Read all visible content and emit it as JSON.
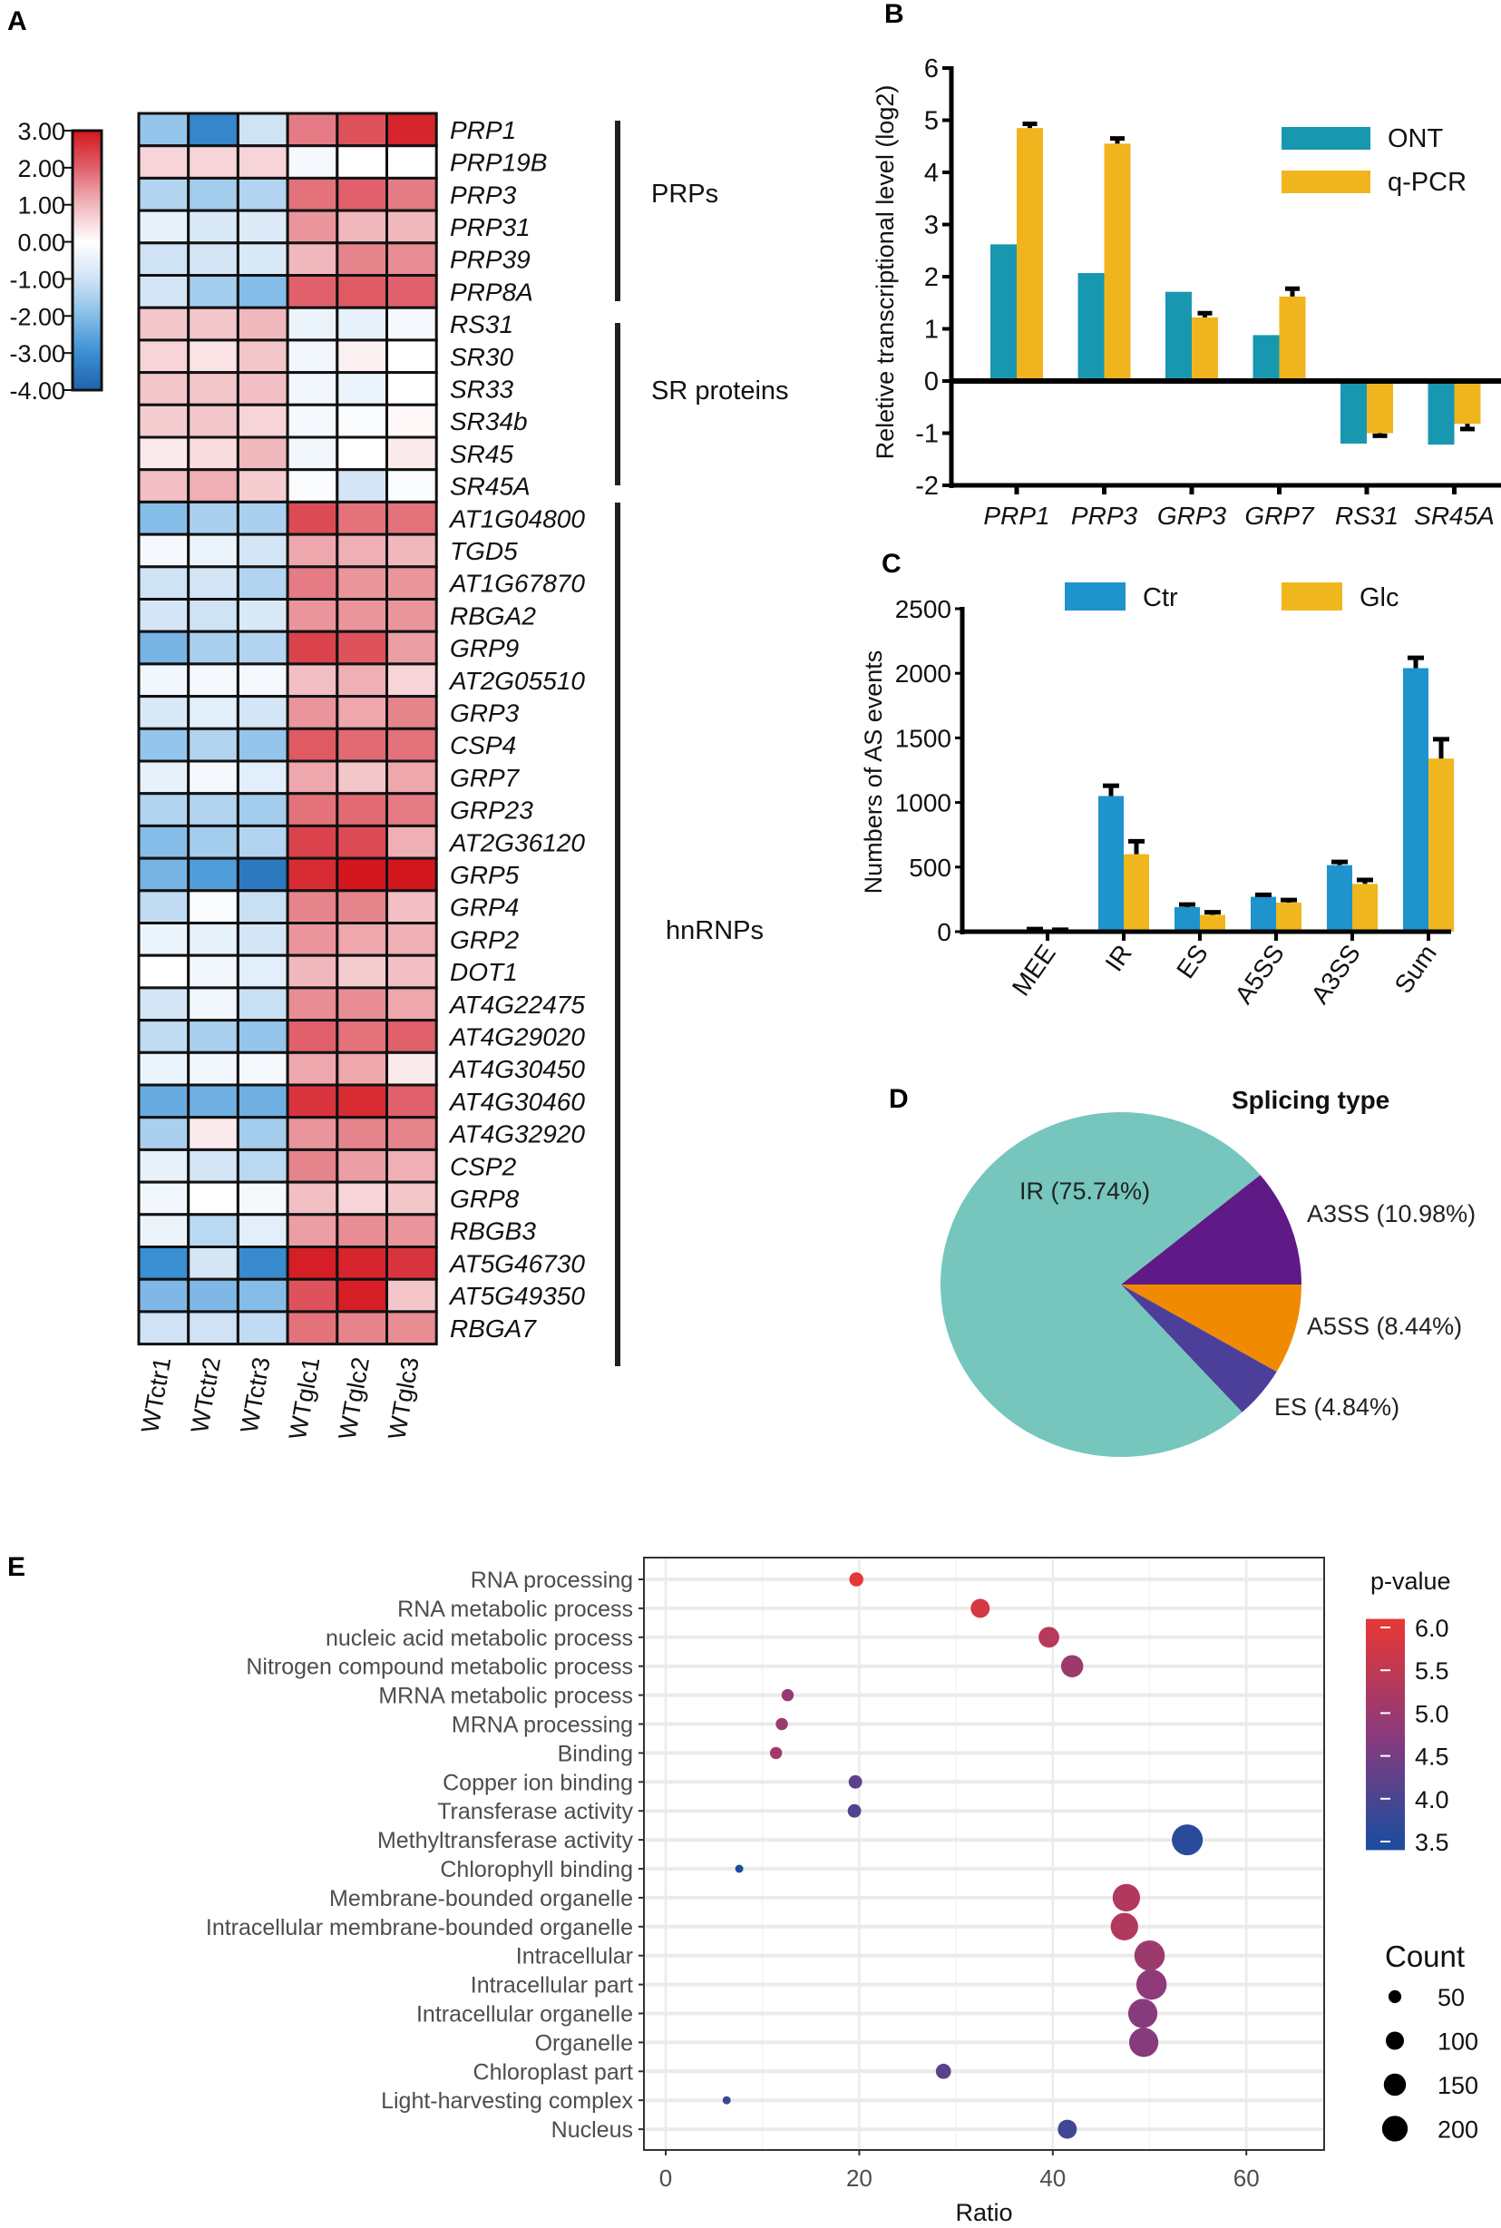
{
  "panels": {
    "a": "A",
    "b": "B",
    "c": "C",
    "d": "D",
    "e": "E"
  },
  "colors": {
    "heat_pos": [
      "#ffffff",
      "#f0b8bd",
      "#e0616b",
      "#d4161e"
    ],
    "heat_neg": [
      "#ffffff",
      "#cfe3f5",
      "#86bde8",
      "#3b8fd3",
      "#1f63ad"
    ],
    "ont": "#1897b0",
    "qpcr": "#f0b51e",
    "ctr": "#1e93cc",
    "glc": "#f0b71e",
    "pie": {
      "IR": "#76c6bd",
      "A3SS": "#5f1a87",
      "A5SS": "#f08a00",
      "ES": "#4c3f9a"
    },
    "pval_low": "#1f4c9e",
    "pval_mid": "#8a3a7c",
    "pval_high": "#e23838"
  },
  "chart_data": [
    {
      "type": "heatmap",
      "colorbar_ticks": [
        "3.00",
        "2.00",
        "1.00",
        "0.00",
        "-1.00",
        "-2.00",
        "-3.00",
        "-4.00"
      ],
      "range": [
        -4,
        3
      ],
      "columns": [
        "WTctr1",
        "WTctr2",
        "WTctr3",
        "WTglc1",
        "WTglc2",
        "WTglc3"
      ],
      "groups": [
        {
          "name": "PRPs",
          "start": 0,
          "end": 5
        },
        {
          "name": "SR proteins",
          "start": 6,
          "end": 11
        },
        {
          "name": "hnRNPs",
          "start": 12,
          "end": 37
        }
      ],
      "rows": [
        {
          "gene": "PRP1",
          "values": [
            -1.8,
            -3.2,
            -1.0,
            1.7,
            2.2,
            2.8
          ]
        },
        {
          "gene": "PRP19B",
          "values": [
            0.6,
            0.6,
            0.6,
            -0.2,
            0,
            0
          ]
        },
        {
          "gene": "PRP3",
          "values": [
            -1.4,
            -1.6,
            -1.4,
            1.8,
            2.0,
            1.7
          ]
        },
        {
          "gene": "PRP31",
          "values": [
            -0.5,
            -0.8,
            -0.7,
            1.4,
            1.0,
            1.0
          ]
        },
        {
          "gene": "PRP39",
          "values": [
            -1.0,
            -0.9,
            -0.8,
            1.0,
            1.6,
            1.5
          ]
        },
        {
          "gene": "PRP8A",
          "values": [
            -0.9,
            -1.6,
            -2.0,
            2.0,
            2.1,
            2.0
          ]
        },
        {
          "gene": "RS31",
          "values": [
            0.8,
            0.8,
            1.0,
            -0.4,
            -0.5,
            -0.2
          ]
        },
        {
          "gene": "SR30",
          "values": [
            0.6,
            0.4,
            0.8,
            -0.3,
            0.2,
            0
          ]
        },
        {
          "gene": "SR33",
          "values": [
            0.8,
            0.8,
            0.9,
            -0.3,
            -0.4,
            0
          ]
        },
        {
          "gene": "SR34b",
          "values": [
            0.7,
            0.8,
            0.6,
            -0.2,
            -0.1,
            0.1
          ]
        },
        {
          "gene": "SR45",
          "values": [
            0.3,
            0.5,
            1.0,
            -0.3,
            0,
            0.3
          ]
        },
        {
          "gene": "SR45A",
          "values": [
            0.9,
            1.1,
            0.7,
            -0.1,
            -0.9,
            -0.1
          ]
        },
        {
          "gene": "AT1G04800",
          "values": [
            -2.0,
            -1.5,
            -1.5,
            2.3,
            1.8,
            1.8
          ]
        },
        {
          "gene": "TGD5",
          "values": [
            -0.2,
            -0.4,
            -0.9,
            1.2,
            1.1,
            1.0
          ]
        },
        {
          "gene": "AT1G67870",
          "values": [
            -1.0,
            -0.9,
            -1.4,
            1.7,
            1.4,
            1.4
          ]
        },
        {
          "gene": "RBGA2",
          "values": [
            -0.9,
            -1.0,
            -0.8,
            1.4,
            1.4,
            1.4
          ]
        },
        {
          "gene": "GRP9",
          "values": [
            -2.2,
            -1.5,
            -1.4,
            2.4,
            2.2,
            1.3
          ]
        },
        {
          "gene": "AT2G05510",
          "values": [
            -0.3,
            -0.2,
            -0.2,
            0.9,
            1.1,
            0.6
          ]
        },
        {
          "gene": "GRP3",
          "values": [
            -0.8,
            -0.6,
            -0.9,
            1.4,
            1.2,
            1.6
          ]
        },
        {
          "gene": "CSP4",
          "values": [
            -1.8,
            -1.4,
            -1.8,
            2.1,
            1.9,
            1.8
          ]
        },
        {
          "gene": "GRP7",
          "values": [
            -0.5,
            -0.2,
            -0.6,
            1.2,
            0.8,
            1.2
          ]
        },
        {
          "gene": "GRP23",
          "values": [
            -1.4,
            -1.4,
            -1.6,
            1.8,
            1.9,
            1.7
          ]
        },
        {
          "gene": "AT2G36120",
          "values": [
            -2.0,
            -1.6,
            -1.4,
            2.4,
            2.3,
            1.1
          ]
        },
        {
          "gene": "GRP5",
          "values": [
            -2.2,
            -2.7,
            -3.5,
            2.7,
            3.0,
            3.0
          ]
        },
        {
          "gene": "GRP4",
          "values": [
            -1.2,
            -0.1,
            -1.1,
            1.6,
            1.6,
            0.9
          ]
        },
        {
          "gene": "GRP2",
          "values": [
            -0.4,
            -0.5,
            -0.9,
            1.4,
            1.2,
            1.1
          ]
        },
        {
          "gene": "DOT1",
          "values": [
            0,
            -0.3,
            -0.6,
            1.0,
            0.7,
            0.9
          ]
        },
        {
          "gene": "AT4G22475",
          "values": [
            -0.9,
            -0.3,
            -1.1,
            1.5,
            1.5,
            1.2
          ]
        },
        {
          "gene": "AT4G29020",
          "values": [
            -1.2,
            -1.5,
            -1.8,
            2.0,
            1.8,
            2.0
          ]
        },
        {
          "gene": "AT4G30450",
          "values": [
            -0.4,
            -0.3,
            -0.2,
            1.2,
            1.2,
            0.3
          ]
        },
        {
          "gene": "AT4G30460",
          "values": [
            -2.4,
            -2.3,
            -2.3,
            2.6,
            2.7,
            2.0
          ]
        },
        {
          "gene": "AT4G32920",
          "values": [
            -1.5,
            0.3,
            -1.6,
            1.4,
            1.6,
            1.6
          ]
        },
        {
          "gene": "CSP2",
          "values": [
            -0.5,
            -0.9,
            -1.3,
            1.6,
            1.3,
            1.1
          ]
        },
        {
          "gene": "GRP8",
          "values": [
            -0.3,
            0,
            -0.2,
            0.9,
            0.6,
            0.8
          ]
        },
        {
          "gene": "RBGB3",
          "values": [
            -0.4,
            -1.3,
            -0.6,
            1.3,
            1.5,
            1.4
          ]
        },
        {
          "gene": "AT5G46730",
          "values": [
            -3.0,
            -0.9,
            -3.1,
            2.9,
            2.8,
            2.6
          ]
        },
        {
          "gene": "AT5G49350",
          "values": [
            -2.1,
            -2.1,
            -2.0,
            2.2,
            2.9,
            0.8
          ]
        },
        {
          "gene": "RBGA7",
          "values": [
            -1.0,
            -1.0,
            -1.2,
            1.8,
            1.6,
            1.5
          ]
        }
      ]
    },
    {
      "type": "bar",
      "ylabel": "Reletive transcriptional level (log2)",
      "ylim": [
        -2,
        6
      ],
      "yticks": [
        6,
        5,
        4,
        3,
        2,
        1,
        0,
        -1,
        -2
      ],
      "categories": [
        "PRP1",
        "PRP3",
        "GRP3",
        "GRP7",
        "RS31",
        "SR45A"
      ],
      "series": [
        {
          "name": "ONT",
          "values": [
            2.62,
            2.07,
            1.71,
            0.88,
            -1.2,
            -1.22
          ]
        },
        {
          "name": "q-PCR",
          "values": [
            4.85,
            4.55,
            1.22,
            1.62,
            -1.0,
            -0.82
          ],
          "errors": [
            0.08,
            0.1,
            0.08,
            0.15,
            0.05,
            0.1
          ]
        }
      ],
      "legend": "top-right"
    },
    {
      "type": "bar",
      "ylabel": "Numbers of AS events",
      "ylim": [
        0,
        2500
      ],
      "yticks": [
        2500,
        2000,
        1500,
        1000,
        500,
        0
      ],
      "categories": [
        "MEE",
        "IR",
        "ES",
        "A5SS",
        "A3SS",
        "Sum"
      ],
      "series": [
        {
          "name": "Ctr",
          "values": [
            15,
            1050,
            190,
            270,
            515,
            2040
          ],
          "errors": [
            5,
            80,
            20,
            15,
            25,
            80
          ]
        },
        {
          "name": "Glc",
          "values": [
            10,
            600,
            130,
            225,
            370,
            1340
          ],
          "errors": [
            5,
            100,
            20,
            20,
            30,
            150
          ]
        }
      ],
      "legend": "top"
    },
    {
      "type": "pie",
      "title": "Splicing type",
      "slices": [
        {
          "name": "A3SS",
          "value": 10.98,
          "label": "A3SS (10.98%)"
        },
        {
          "name": "A5SS",
          "value": 8.44,
          "label": "A5SS (8.44%)"
        },
        {
          "name": "ES",
          "value": 4.84,
          "label": "ES (4.84%)"
        },
        {
          "name": "IR",
          "value": 75.74,
          "label": "IR (75.74%)"
        }
      ]
    },
    {
      "type": "scatter",
      "xlabel": "Ratio",
      "xlim": [
        -2.3,
        68
      ],
      "xticks": [
        0,
        20,
        40,
        60
      ],
      "color_legend": {
        "title": "p-value",
        "range": [
          3.4,
          6.1
        ],
        "ticks": [
          "6.0",
          "5.5",
          "5.0",
          "4.5",
          "4.0",
          "3.5"
        ]
      },
      "size_legend": {
        "title": "Count",
        "values": [
          50,
          100,
          150,
          200
        ]
      },
      "points": [
        {
          "term": "RNA processing",
          "ratio": 19.7,
          "count": 60,
          "p": 6.0
        },
        {
          "term": "RNA metabolic process",
          "ratio": 32.5,
          "count": 110,
          "p": 5.8
        },
        {
          "term": "nucleic acid metabolic process",
          "ratio": 39.6,
          "count": 130,
          "p": 5.4
        },
        {
          "term": "Nitrogen compound metabolic process",
          "ratio": 42.0,
          "count": 150,
          "p": 5.0
        },
        {
          "term": "MRNA metabolic process",
          "ratio": 12.6,
          "count": 45,
          "p": 4.9
        },
        {
          "term": "MRNA processing",
          "ratio": 12.0,
          "count": 45,
          "p": 5.0
        },
        {
          "term": "Binding",
          "ratio": 11.4,
          "count": 45,
          "p": 5.1
        },
        {
          "term": "Copper ion binding",
          "ratio": 19.6,
          "count": 55,
          "p": 4.2
        },
        {
          "term": "Transferase activity",
          "ratio": 19.5,
          "count": 55,
          "p": 4.1
        },
        {
          "term": "Methyltransferase activity",
          "ratio": 53.9,
          "count": 290,
          "p": 3.6
        },
        {
          "term": "Chlorophyll binding",
          "ratio": 7.6,
          "count": 20,
          "p": 3.5
        },
        {
          "term": "Membrane-bounded organelle",
          "ratio": 47.6,
          "count": 230,
          "p": 5.3
        },
        {
          "term": "Intracellular membrane-bounded organelle",
          "ratio": 47.4,
          "count": 230,
          "p": 5.3
        },
        {
          "term": "Intracellular",
          "ratio": 50.0,
          "count": 280,
          "p": 5.0
        },
        {
          "term": "Intracellular part",
          "ratio": 50.2,
          "count": 280,
          "p": 4.8
        },
        {
          "term": "Intracellular organelle",
          "ratio": 49.3,
          "count": 260,
          "p": 4.7
        },
        {
          "term": "Organelle",
          "ratio": 49.4,
          "count": 260,
          "p": 4.7
        },
        {
          "term": "Chloroplast part",
          "ratio": 28.7,
          "count": 70,
          "p": 4.2
        },
        {
          "term": "Light-harvesting complex",
          "ratio": 6.3,
          "count": 20,
          "p": 3.8
        },
        {
          "term": "Nucleus",
          "ratio": 41.5,
          "count": 110,
          "p": 3.9
        }
      ]
    }
  ]
}
